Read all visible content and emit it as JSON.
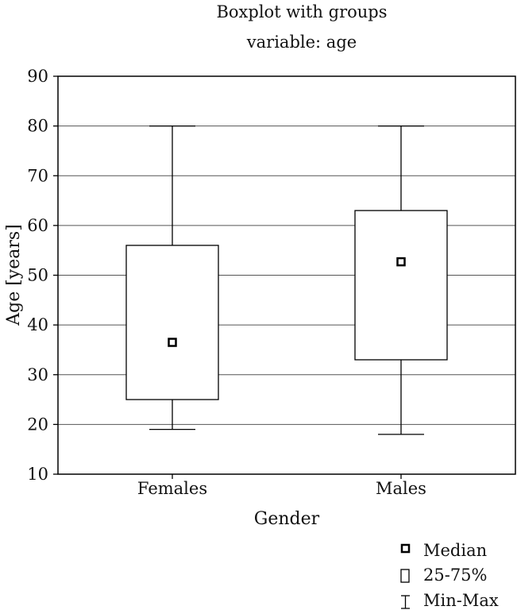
{
  "chart_data": {
    "type": "boxplot",
    "title": "Boxplot with groups",
    "subtitle": "variable: age",
    "xlabel": "Gender",
    "ylabel": "Age [years]",
    "ylim": [
      10,
      90
    ],
    "yticks": [
      10,
      20,
      30,
      40,
      50,
      60,
      70,
      80,
      90
    ],
    "grid": true,
    "legend_position": "bottom-right",
    "categories": [
      "Females",
      "Males"
    ],
    "boxes": [
      {
        "category": "Females",
        "min": 19,
        "q1": 25,
        "median": 36.5,
        "q3": 56,
        "max": 80
      },
      {
        "category": "Males",
        "min": 18,
        "q1": 33,
        "median": 52.7,
        "q3": 63,
        "max": 80
      }
    ],
    "legend": [
      {
        "marker": "median-square",
        "label": "Median"
      },
      {
        "marker": "box",
        "label": "25-75%"
      },
      {
        "marker": "whisker",
        "label": "Min-Max"
      }
    ]
  }
}
